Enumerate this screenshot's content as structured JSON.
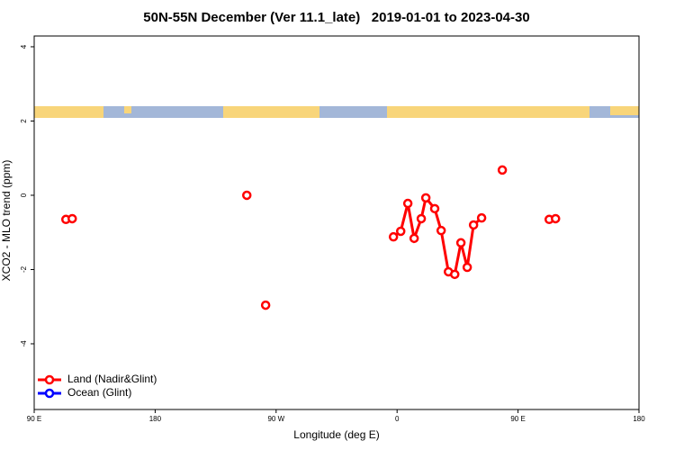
{
  "chart_data": {
    "type": "line",
    "title": "50N-55N December (Ver 11.1_late)   2019-01-01 to 2023-04-30",
    "x_label": "Longitude (deg E)",
    "y_label": "XCO2 - MLO trend (ppm)",
    "xlim": [
      -270,
      180
    ],
    "xticks": [
      {
        "value": -270,
        "label": "90 E"
      },
      {
        "value": -180,
        "label": "180"
      },
      {
        "value": -90,
        "label": "90 W"
      },
      0,
      {
        "value": 90,
        "label": "90 E"
      },
      180
    ],
    "ylim": [
      -5.77,
      4.29
    ],
    "yticks": [
      -4,
      -2,
      0,
      2,
      4
    ],
    "legend": "bottom-left",
    "series": [
      {
        "name": "Land (Nadir&Glint)",
        "color": "#ff0000",
        "x": [
          -246.4,
          -241.7,
          null,
          -111.8,
          null,
          -97.8,
          null,
          -2.7,
          2.7,
          8,
          12.7,
          18,
          21.4,
          28,
          32.8,
          38.2,
          42.9,
          47.5,
          52.2,
          56.9,
          62.9,
          null,
          78.3,
          null,
          113.2,
          117.9
        ],
        "values": [
          -0.65,
          -0.63,
          null,
          0,
          null,
          -2.96,
          null,
          -1.12,
          -0.97,
          -0.22,
          -1.16,
          -0.63,
          -0.07,
          -0.36,
          -0.95,
          -2.06,
          -2.13,
          -1.28,
          -1.94,
          -0.8,
          -0.61,
          null,
          0.68,
          null,
          -0.65,
          -0.63
        ]
      },
      {
        "name": "Ocean (Glint)",
        "color": "#0000ff",
        "x": [],
        "values": []
      }
    ]
  }
}
